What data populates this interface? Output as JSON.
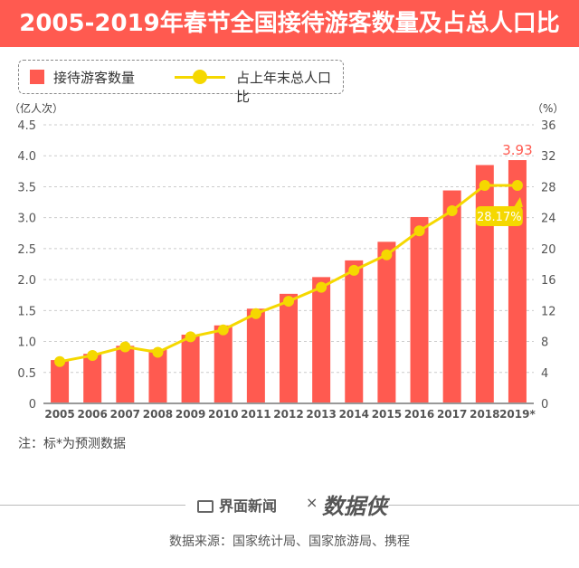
{
  "title": "2005-2019年春节全国接待游客数量及占总人口比",
  "legend": {
    "bar": "接待游客数量",
    "line": "占上年末总人口比"
  },
  "note": "注：标*为预测数据",
  "footer": {
    "brand": "界面新闻",
    "times": "×",
    "partner": "数据侠",
    "source": "数据来源：国家统计局、国家旅游局、携程"
  },
  "colors": {
    "bar": "#ff5a50",
    "line": "#f5d800",
    "title_bg": "#ff5a50"
  },
  "chart_data": {
    "type": "bar",
    "categories": [
      "2005",
      "2006",
      "2007",
      "2008",
      "2009",
      "2010",
      "2011",
      "2012",
      "2013",
      "2014",
      "2015",
      "2016",
      "2017",
      "2018",
      "2019*"
    ],
    "series": [
      {
        "name": "接待游客数量",
        "type": "bar",
        "axis": "left",
        "values": [
          0.7,
          0.8,
          0.93,
          0.87,
          1.11,
          1.26,
          1.53,
          1.77,
          2.04,
          2.31,
          2.61,
          3.01,
          3.44,
          3.85,
          3.93
        ]
      },
      {
        "name": "占上年末总人口比",
        "type": "line",
        "axis": "right",
        "values": [
          5.4,
          6.2,
          7.3,
          6.6,
          8.6,
          9.5,
          11.6,
          13.2,
          15.0,
          17.2,
          19.2,
          22.3,
          24.9,
          28.17,
          28.17
        ]
      }
    ],
    "ylabel": "（亿人次）",
    "y2label": "（%）",
    "ylim": [
      0,
      4.5
    ],
    "y2lim": [
      0,
      36
    ],
    "yticks": [
      "0",
      "0.5",
      "1.0",
      "1.5",
      "2.0",
      "2.5",
      "3.0",
      "3.5",
      "4.0",
      "4.5"
    ],
    "y2ticks": [
      "0",
      "4",
      "8",
      "12",
      "16",
      "20",
      "24",
      "28",
      "32",
      "36"
    ],
    "annotations": {
      "bar_label": "3.93",
      "line_label": "28.17%"
    },
    "grid": true
  }
}
